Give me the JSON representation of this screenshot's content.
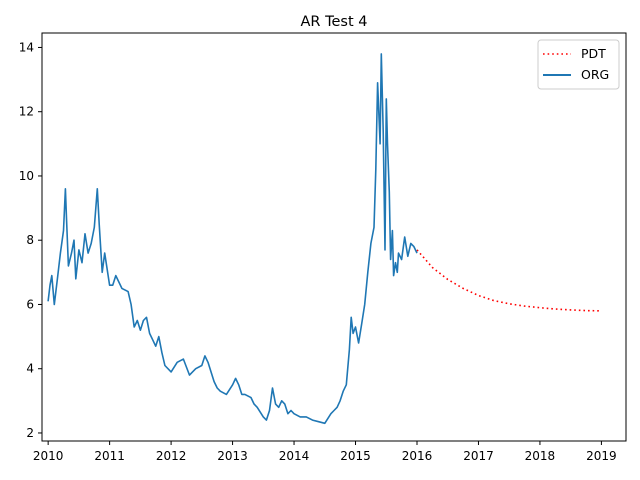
{
  "chart_data": {
    "type": "line",
    "title": "AR Test 4",
    "xlabel": "",
    "ylabel": "",
    "xlim": [
      2009.9,
      2019.4
    ],
    "ylim": [
      1.75,
      14.45
    ],
    "x_ticks": [
      2010,
      2011,
      2012,
      2013,
      2014,
      2015,
      2016,
      2017,
      2018,
      2019
    ],
    "x_tick_labels": [
      "2010",
      "2011",
      "2012",
      "2013",
      "2014",
      "2015",
      "2016",
      "2017",
      "2018",
      "2019"
    ],
    "y_ticks": [
      2,
      4,
      6,
      8,
      10,
      12,
      14
    ],
    "y_tick_labels": [
      "2",
      "4",
      "6",
      "8",
      "10",
      "12",
      "14"
    ],
    "grid": false,
    "legend_position": "top-right",
    "series": [
      {
        "name": "PDT",
        "color": "#ff0000",
        "style": "dotted",
        "x": [
          2016.0,
          2016.25,
          2016.5,
          2016.75,
          2017.0,
          2017.25,
          2017.5,
          2017.75,
          2018.0,
          2018.25,
          2018.5,
          2018.75,
          2019.0
        ],
        "y": [
          7.7,
          7.15,
          6.78,
          6.5,
          6.28,
          6.12,
          6.02,
          5.95,
          5.9,
          5.86,
          5.83,
          5.81,
          5.8
        ]
      },
      {
        "name": "ORG",
        "color": "#1f77b4",
        "style": "solid",
        "x": [
          2010.0,
          2010.03,
          2010.06,
          2010.1,
          2010.15,
          2010.2,
          2010.25,
          2010.28,
          2010.3,
          2010.33,
          2010.38,
          2010.42,
          2010.45,
          2010.5,
          2010.55,
          2010.6,
          2010.65,
          2010.7,
          2010.75,
          2010.8,
          2010.83,
          2010.88,
          2010.92,
          2011.0,
          2011.05,
          2011.1,
          2011.2,
          2011.3,
          2011.35,
          2011.4,
          2011.45,
          2011.5,
          2011.55,
          2011.6,
          2011.65,
          2011.7,
          2011.75,
          2011.8,
          2011.85,
          2011.9,
          2012.0,
          2012.1,
          2012.2,
          2012.3,
          2012.4,
          2012.5,
          2012.55,
          2012.6,
          2012.7,
          2012.75,
          2012.8,
          2012.9,
          2013.0,
          2013.05,
          2013.1,
          2013.15,
          2013.2,
          2013.3,
          2013.35,
          2013.4,
          2013.5,
          2013.55,
          2013.6,
          2013.65,
          2013.7,
          2013.75,
          2013.8,
          2013.85,
          2013.9,
          2013.95,
          2014.0,
          2014.1,
          2014.2,
          2014.3,
          2014.4,
          2014.5,
          2014.6,
          2014.65,
          2014.7,
          2014.75,
          2014.8,
          2014.85,
          2014.9,
          2014.93,
          2014.96,
          2015.0,
          2015.05,
          2015.1,
          2015.15,
          2015.2,
          2015.25,
          2015.3,
          2015.33,
          2015.36,
          2015.4,
          2015.42,
          2015.45,
          2015.48,
          2015.5,
          2015.52,
          2015.55,
          2015.57,
          2015.6,
          2015.62,
          2015.65,
          2015.68,
          2015.7,
          2015.75,
          2015.8,
          2015.85,
          2015.9,
          2015.95,
          2016.0
        ],
        "y": [
          6.1,
          6.6,
          6.9,
          6.0,
          6.8,
          7.6,
          8.3,
          9.6,
          8.6,
          7.2,
          7.6,
          8.0,
          6.8,
          7.7,
          7.3,
          8.2,
          7.6,
          7.9,
          8.4,
          9.6,
          8.5,
          7.0,
          7.6,
          6.6,
          6.6,
          6.9,
          6.5,
          6.4,
          6.0,
          5.3,
          5.5,
          5.2,
          5.5,
          5.6,
          5.1,
          4.9,
          4.7,
          5.0,
          4.5,
          4.1,
          3.9,
          4.2,
          4.3,
          3.8,
          4.0,
          4.1,
          4.4,
          4.2,
          3.6,
          3.4,
          3.3,
          3.2,
          3.5,
          3.7,
          3.5,
          3.2,
          3.2,
          3.1,
          2.9,
          2.8,
          2.5,
          2.4,
          2.7,
          3.4,
          2.9,
          2.8,
          3.0,
          2.9,
          2.6,
          2.7,
          2.6,
          2.5,
          2.5,
          2.4,
          2.35,
          2.3,
          2.6,
          2.7,
          2.8,
          3.0,
          3.3,
          3.5,
          4.6,
          5.6,
          5.1,
          5.3,
          4.8,
          5.4,
          6.0,
          7.0,
          7.9,
          8.4,
          10.2,
          12.9,
          11.0,
          13.8,
          11.4,
          7.7,
          12.4,
          11.0,
          9.5,
          7.4,
          8.3,
          6.9,
          7.3,
          7.0,
          7.6,
          7.4,
          8.1,
          7.5,
          7.9,
          7.8,
          7.6
        ]
      }
    ]
  }
}
